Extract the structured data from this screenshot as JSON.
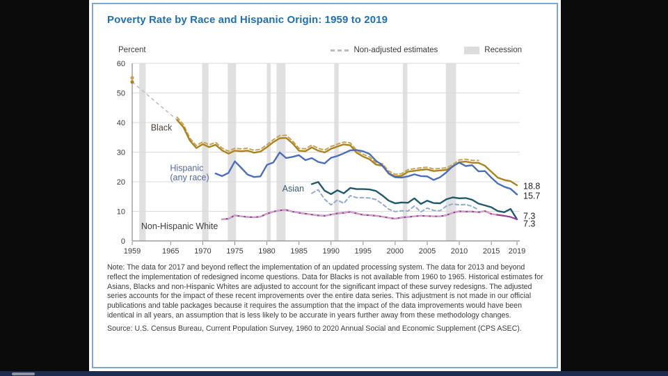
{
  "note": "Note: The data for 2017 and beyond reflect the implementation of an updated processing system. The data for 2013 and beyond reflect the implementation of redesigned income questions. Data for Blacks is not available from 1960 to 1965. Historical estimates for Asians, Blacks and non-Hispanic Whites are adjusted to account for the significant impact of these survey redesigns. The adjusted series accounts for the impact of these recent improvements over the entire data series. This adjustment is not made in our official publications and table packages because it requires the assumption that the impact of the data improvements would have been identical in all years, an assumption that is less likely to be accurate in years further away from these methodology changes.",
  "source": "Source: U.S. Census Bureau, Current Population Survey, 1960 to 2020 Annual Social and Economic Supplement (CPS ASEC).",
  "chart_data": {
    "type": "line",
    "title": "Poverty Rate by Race and Hispanic Origin: 1959 to 2019",
    "ylabel": "Percent",
    "xlabel": "",
    "ylim": [
      0,
      60
    ],
    "xlim": [
      1959,
      2019
    ],
    "yticks": [
      0,
      10,
      20,
      30,
      40,
      50,
      60
    ],
    "xticks": [
      1959,
      1965,
      1970,
      1975,
      1980,
      1985,
      1990,
      1995,
      2000,
      2005,
      2010,
      2015,
      2019
    ],
    "grid": true,
    "legend_position": "top-right",
    "legend": [
      {
        "label": "Non-adjusted estimates",
        "style": "dashed",
        "color": "#bcbcbc"
      },
      {
        "label": "Recession",
        "style": "band",
        "color": "#dcdcdc"
      }
    ],
    "colors": {
      "grid": "#d9d9d9",
      "axis": "#8a8a8a",
      "tick_text": "#3a3a3a",
      "recession_band": "#e0e0e0",
      "title": "#1e70b5",
      "end_label_text": "#1f1f1f"
    },
    "recessions": [
      [
        1960.1,
        1961.1
      ],
      [
        1969.9,
        1970.9
      ],
      [
        1973.9,
        1975.2
      ],
      [
        1980.0,
        1980.6
      ],
      [
        1981.5,
        1982.9
      ],
      [
        1990.5,
        1991.2
      ],
      [
        2001.2,
        2001.9
      ],
      [
        2007.9,
        2009.5
      ]
    ],
    "points_1959": [
      {
        "series": "black-nonadjusted",
        "year": 1959,
        "value": 55.1,
        "color": "#c9a156"
      },
      {
        "series": "black",
        "year": 1959,
        "value": 53.7,
        "color": "#a9831e"
      }
    ],
    "connector": {
      "note": "Black data not available 1960-1965",
      "from_year": 1959,
      "from_value": 53.7,
      "to_year": 1966,
      "to_value": 40.9,
      "color": "#b9c0ca"
    },
    "series": [
      {
        "id": "black-nonadjusted",
        "label": "Black (non-adjusted)",
        "color": "#c9a156",
        "dashed": true,
        "width": 2,
        "start_year": 1966,
        "values": [
          41.8,
          39.3,
          34.7,
          32.2,
          33.5,
          32.5,
          33.3,
          31.4,
          30.3,
          31.3,
          31.1,
          31.3,
          30.6,
          31.0,
          32.5,
          34.2,
          35.6,
          35.7,
          33.8,
          31.3,
          31.1,
          32.4,
          31.3,
          30.7,
          31.9,
          32.7,
          33.4,
          33.1,
          30.6,
          29.3,
          28.4,
          26.5,
          26.1,
          23.6,
          22.5,
          22.7,
          24.1,
          24.4,
          24.7,
          24.9,
          24.3,
          24.5,
          24.7,
          25.8,
          27.4,
          27.6,
          27.2,
          27.2
        ]
      },
      {
        "id": "black",
        "label": "Black",
        "color": "#a9831e",
        "dashed": false,
        "width": 2.4,
        "start_year": 1966,
        "values": [
          40.9,
          38.4,
          33.9,
          31.4,
          32.7,
          31.7,
          32.5,
          30.6,
          29.5,
          30.5,
          30.3,
          30.5,
          29.8,
          30.2,
          31.7,
          33.4,
          34.7,
          34.8,
          33.0,
          30.5,
          30.3,
          31.6,
          30.5,
          29.9,
          31.1,
          31.9,
          32.6,
          32.3,
          29.8,
          28.5,
          27.6,
          25.8,
          25.4,
          22.9,
          21.8,
          22.0,
          23.4,
          23.7,
          24.0,
          24.2,
          23.6,
          23.8,
          24.0,
          25.1,
          26.6,
          26.8,
          26.4,
          26.4,
          25.4,
          23.4,
          21.4,
          20.6,
          20.2,
          18.8
        ]
      },
      {
        "id": "hispanic",
        "label": "Hispanic (any race)",
        "color": "#4a6dbd",
        "dashed": false,
        "width": 2.4,
        "start_year": 1972,
        "values": [
          22.8,
          21.9,
          23.0,
          26.9,
          24.7,
          22.4,
          21.6,
          21.8,
          25.7,
          26.5,
          29.9,
          28.0,
          28.4,
          29.0,
          27.3,
          28.0,
          26.7,
          26.2,
          28.1,
          28.7,
          29.6,
          30.6,
          30.7,
          30.3,
          29.4,
          27.1,
          25.6,
          22.7,
          21.5,
          21.4,
          21.8,
          22.5,
          21.9,
          21.8,
          20.6,
          21.5,
          23.2,
          25.3,
          26.5,
          25.3,
          25.6,
          23.5,
          23.6,
          21.4,
          19.4,
          18.3,
          17.6,
          15.7
        ]
      },
      {
        "id": "asian-nonadjusted",
        "label": "Asian (non-adjusted)",
        "color": "#93aac9",
        "dashed": true,
        "width": 2,
        "start_year": 1987,
        "values": [
          16.1,
          17.3,
          14.1,
          12.2,
          13.8,
          12.7,
          15.3,
          14.6,
          14.6,
          14.5,
          14.0,
          12.5,
          10.7,
          9.9,
          10.2,
          10.1,
          11.8,
          9.8,
          11.1,
          10.3,
          10.2,
          11.8,
          12.5,
          12.2,
          12.3,
          11.7,
          10.5
        ]
      },
      {
        "id": "asian",
        "label": "Asian",
        "color": "#20596b",
        "dashed": false,
        "width": 2.4,
        "start_year": 1987,
        "values": [
          19.2,
          19.9,
          17.0,
          15.8,
          17.1,
          16.1,
          17.9,
          17.5,
          17.5,
          17.4,
          16.9,
          15.4,
          13.6,
          12.7,
          13.0,
          12.9,
          14.4,
          12.5,
          13.6,
          12.8,
          12.7,
          14.1,
          14.7,
          14.4,
          14.5,
          13.9,
          12.6,
          12.0,
          11.4,
          10.1,
          9.7,
          10.8,
          7.3
        ]
      },
      {
        "id": "nh-white",
        "label": "Non-Hispanic White",
        "color": "#993a96",
        "dashed": false,
        "width": 2.2,
        "start_year": 1973,
        "values": [
          7.3,
          7.5,
          8.6,
          8.3,
          8.1,
          8.0,
          8.2,
          9.2,
          9.9,
          10.3,
          10.5,
          9.9,
          9.5,
          9.2,
          8.9,
          8.6,
          8.5,
          8.9,
          9.3,
          9.5,
          9.8,
          9.3,
          8.8,
          8.7,
          8.5,
          8.2,
          7.8,
          7.5,
          7.9,
          8.1,
          8.3,
          8.5,
          8.4,
          8.3,
          8.3,
          8.7,
          9.5,
          10.0,
          9.9,
          9.9,
          9.7,
          10.1,
          9.1,
          8.8,
          8.5,
          8.1,
          7.3
        ]
      },
      {
        "id": "nh-white-nonadjusted",
        "label": "Non-Hispanic White (non-adjusted)",
        "color": "#d2a7cd",
        "dashed": true,
        "width": 1.8,
        "start_year": 1973,
        "values": [
          7.3,
          7.5,
          8.6,
          8.3,
          8.1,
          8.0,
          8.2,
          9.2,
          9.9,
          10.3,
          10.5,
          9.9,
          9.5,
          9.2,
          8.9,
          8.6,
          8.5,
          8.9,
          9.3,
          9.5,
          9.8,
          9.3,
          8.8,
          8.7,
          8.5,
          8.2,
          7.8,
          7.5,
          7.9,
          8.1,
          8.3,
          8.5,
          8.4,
          8.3,
          8.3,
          8.7,
          9.5,
          10.0,
          9.9,
          9.9,
          9.7,
          10.1,
          9.1,
          8.8
        ]
      }
    ],
    "series_labels": [
      {
        "text": "Black",
        "x_year": 1961.9,
        "y_value": 38.2,
        "color": "#4a4138"
      },
      {
        "text": "Hispanic",
        "line2": "(any race)",
        "x_year": 1964.9,
        "y_value": 24.6,
        "color": "#54679c"
      },
      {
        "text": "Asian",
        "x_year": 1982.4,
        "y_value": 17.6,
        "color": "#375a6c"
      },
      {
        "text": "Non-Hispanic White",
        "x_year": 1960.4,
        "y_value": 5.0,
        "color": "#403a44"
      }
    ],
    "end_labels": [
      {
        "text": "18.8",
        "series": "black",
        "y_value": 18.5
      },
      {
        "text": "15.7",
        "series": "hispanic",
        "y_value": 15.2
      },
      {
        "text": "7.3",
        "series": "asian",
        "y_value": 8.4
      },
      {
        "text": "7.3",
        "series": "nh-white",
        "y_value": 5.8
      }
    ]
  }
}
